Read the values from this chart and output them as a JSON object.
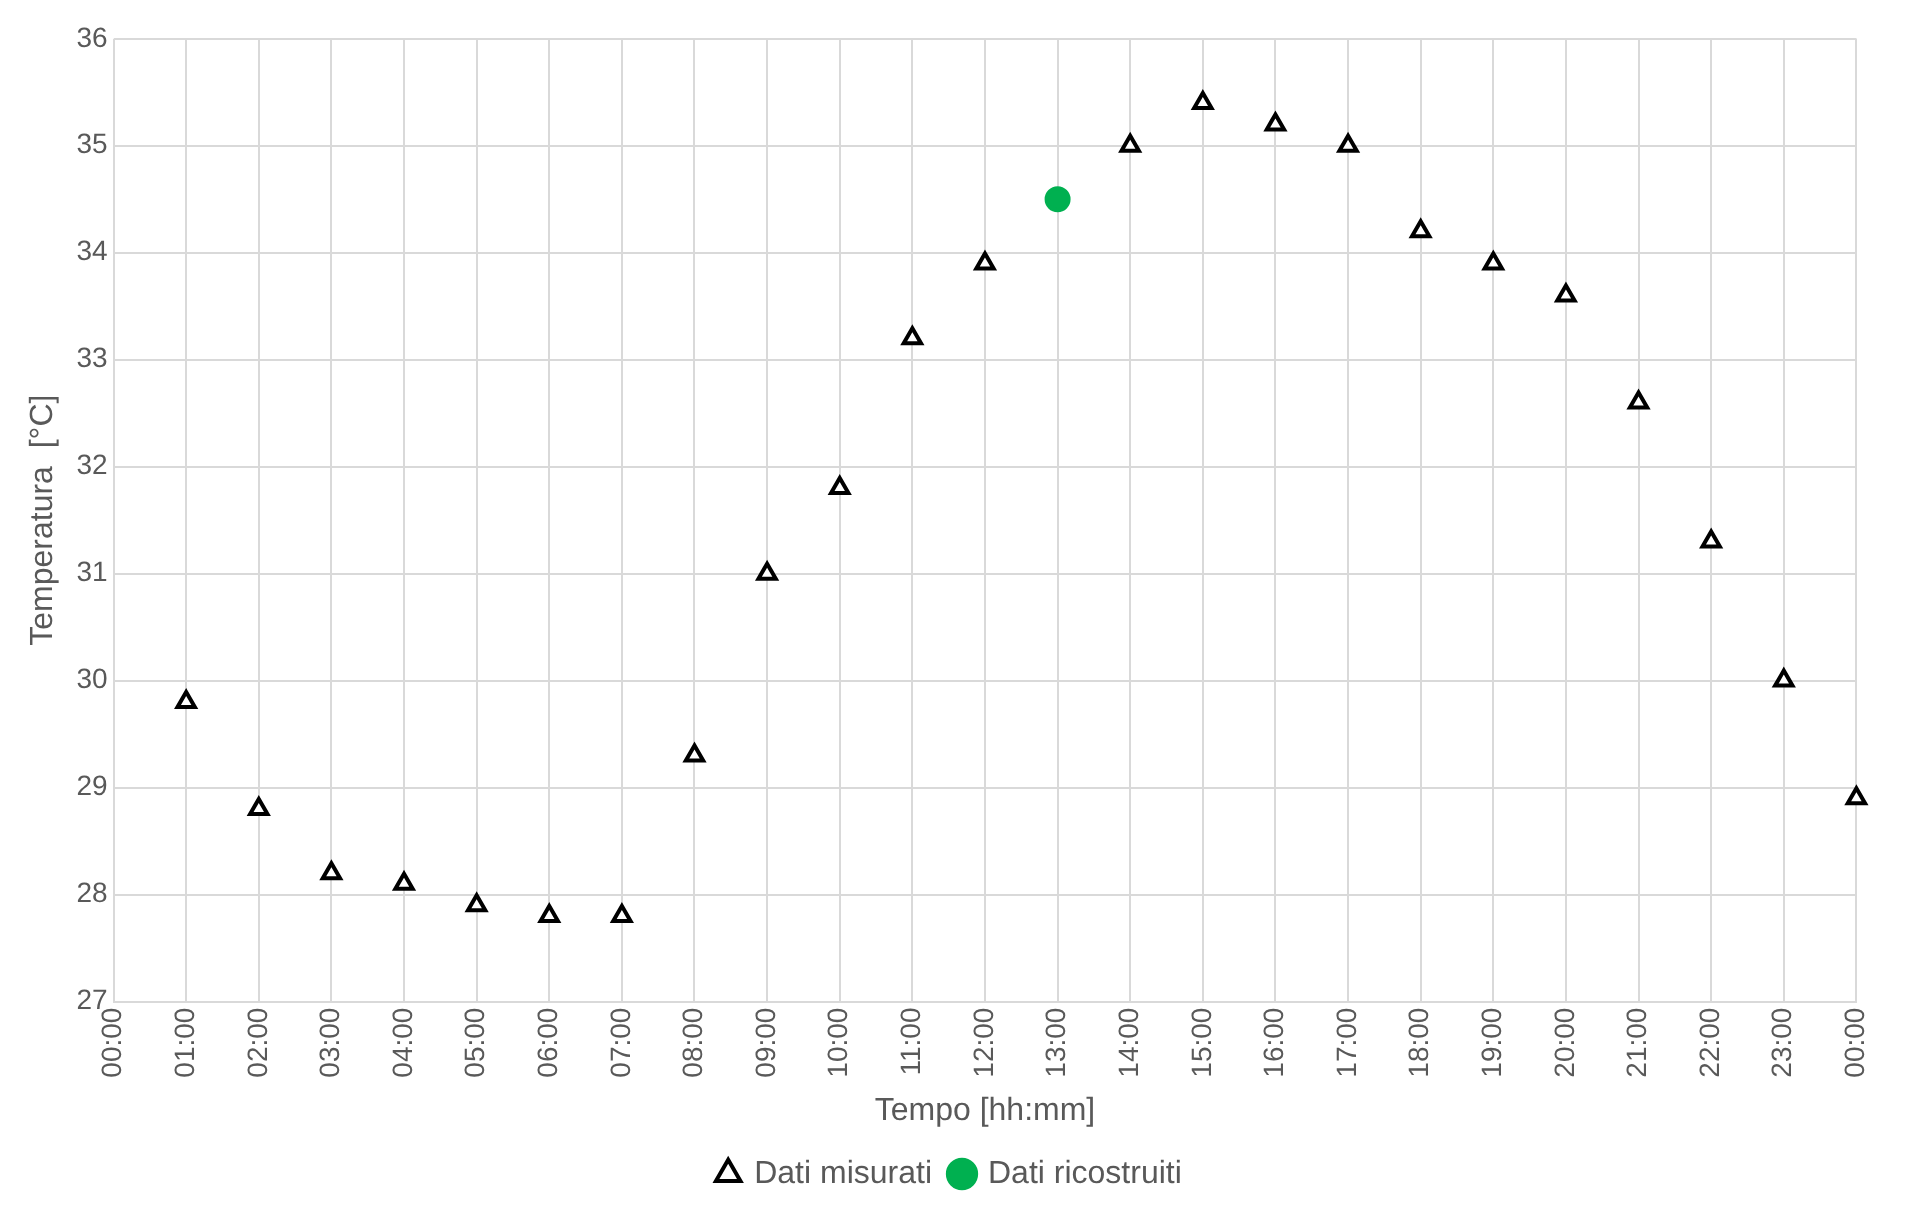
{
  "chart_data": {
    "type": "scatter",
    "xlabel": "Tempo [hh:mm]",
    "ylabel": "Temperatura  [°C]",
    "xlim": [
      0,
      24
    ],
    "xticks": [
      {
        "value": 0,
        "label": "00:00"
      },
      {
        "value": 1,
        "label": "01:00"
      },
      {
        "value": 2,
        "label": "02:00"
      },
      {
        "value": 3,
        "label": "03:00"
      },
      {
        "value": 4,
        "label": "04:00"
      },
      {
        "value": 5,
        "label": "05:00"
      },
      {
        "value": 6,
        "label": "06:00"
      },
      {
        "value": 7,
        "label": "07:00"
      },
      {
        "value": 8,
        "label": "08:00"
      },
      {
        "value": 9,
        "label": "09:00"
      },
      {
        "value": 10,
        "label": "10:00"
      },
      {
        "value": 11,
        "label": "11:00"
      },
      {
        "value": 12,
        "label": "12:00"
      },
      {
        "value": 13,
        "label": "13:00"
      },
      {
        "value": 14,
        "label": "14:00"
      },
      {
        "value": 15,
        "label": "15:00"
      },
      {
        "value": 16,
        "label": "16:00"
      },
      {
        "value": 17,
        "label": "17:00"
      },
      {
        "value": 18,
        "label": "18:00"
      },
      {
        "value": 19,
        "label": "19:00"
      },
      {
        "value": 20,
        "label": "20:00"
      },
      {
        "value": 21,
        "label": "21:00"
      },
      {
        "value": 22,
        "label": "22:00"
      },
      {
        "value": 23,
        "label": "23:00"
      },
      {
        "value": 24,
        "label": "00:00"
      }
    ],
    "ylim": [
      27,
      36
    ],
    "yticks": [
      27,
      28,
      29,
      30,
      31,
      32,
      33,
      34,
      35,
      36
    ],
    "grid": true,
    "legend": "bottom",
    "series": [
      {
        "name": "Dati misurati",
        "color": "#000000",
        "marker": "triangle",
        "x": [
          1,
          2,
          3,
          4,
          5,
          6,
          7,
          8,
          9,
          10,
          11,
          12,
          14,
          15,
          16,
          17,
          18,
          19,
          20,
          21,
          22,
          23,
          24
        ],
        "values": [
          29.8,
          28.8,
          28.2,
          28.1,
          27.9,
          27.8,
          27.8,
          29.3,
          31.0,
          31.8,
          33.2,
          33.9,
          35.0,
          35.4,
          35.2,
          35.0,
          34.2,
          33.9,
          33.6,
          32.6,
          31.3,
          30.0,
          28.9
        ]
      },
      {
        "name": "Dati ricostruiti",
        "color": "#00b050",
        "marker": "circle",
        "x": [
          13
        ],
        "values": [
          34.5
        ]
      }
    ]
  }
}
